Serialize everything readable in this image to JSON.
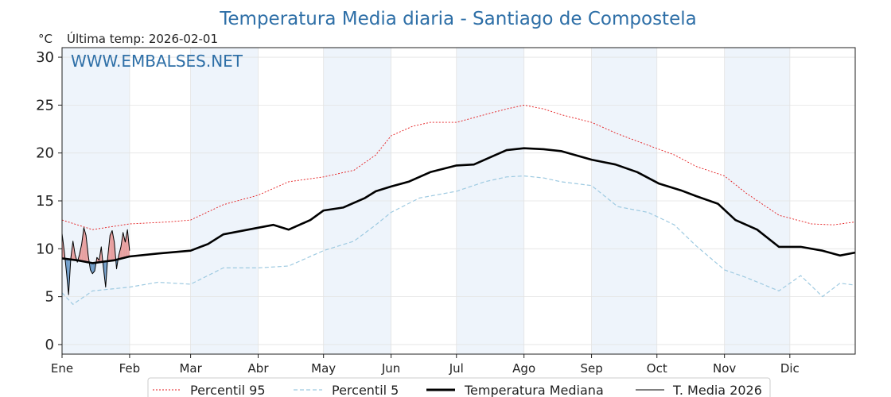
{
  "header": {
    "title": "Temperatura Media diaria - Santiago de Compostela",
    "unit": "°C",
    "last_temp": "Última temp: 2026-02-01",
    "watermark": "WWW.EMBALSES.NET"
  },
  "colors": {
    "p95": "#e41a1c",
    "p5": "#9ecae1",
    "median": "#000000",
    "current": "#000000",
    "fill_above": "#e8a0a0",
    "fill_below": "#6f9cc8",
    "band": "#eef4fb"
  },
  "legend": [
    {
      "key": "p95",
      "label": "Percentil 95"
    },
    {
      "key": "p5",
      "label": "Percentil 5"
    },
    {
      "key": "median",
      "label": "Temperatura Mediana"
    },
    {
      "key": "current",
      "label": "T. Media 2026"
    }
  ],
  "chart_data": {
    "type": "line",
    "title": "Temperatura Media diaria - Santiago de Compostela",
    "ylabel": "°C",
    "ylim": [
      -1,
      31
    ],
    "yticks": [
      0,
      5,
      10,
      15,
      20,
      25,
      30
    ],
    "xlim": [
      1,
      365
    ],
    "months": [
      {
        "label": "Ene",
        "day": 1
      },
      {
        "label": "Feb",
        "day": 32
      },
      {
        "label": "Mar",
        "day": 60
      },
      {
        "label": "Abr",
        "day": 91
      },
      {
        "label": "May",
        "day": 121
      },
      {
        "label": "Jun",
        "day": 152
      },
      {
        "label": "Jul",
        "day": 182
      },
      {
        "label": "Ago",
        "day": 213
      },
      {
        "label": "Sep",
        "day": 244
      },
      {
        "label": "Oct",
        "day": 274
      },
      {
        "label": "Nov",
        "day": 305
      },
      {
        "label": "Dic",
        "day": 335
      }
    ],
    "grid": true,
    "legend_position": "bottom",
    "series": [
      {
        "key": "p95",
        "name": "Percentil 95",
        "style": "dotted",
        "x": [
          1,
          15,
          32,
          50,
          60,
          75,
          91,
          105,
          121,
          135,
          145,
          152,
          162,
          170,
          182,
          195,
          205,
          213,
          222,
          230,
          244,
          256,
          270,
          282,
          292,
          305,
          315,
          330,
          345,
          355,
          365
        ],
        "y": [
          13.0,
          12.0,
          12.6,
          12.8,
          13.0,
          14.6,
          15.6,
          17.0,
          17.5,
          18.2,
          19.8,
          21.8,
          22.8,
          23.2,
          23.2,
          24.0,
          24.6,
          25.0,
          24.6,
          24.0,
          23.2,
          22.0,
          20.8,
          19.8,
          18.6,
          17.6,
          15.8,
          13.5,
          12.6,
          12.5,
          12.8
        ]
      },
      {
        "key": "p5",
        "name": "Percentil 5",
        "style": "dashed",
        "x": [
          1,
          6,
          15,
          32,
          45,
          60,
          75,
          91,
          105,
          121,
          135,
          145,
          152,
          165,
          182,
          195,
          205,
          213,
          222,
          230,
          244,
          256,
          270,
          282,
          292,
          305,
          315,
          330,
          340,
          350,
          358,
          365
        ],
        "y": [
          5.4,
          4.2,
          5.6,
          6.0,
          6.5,
          6.3,
          8.0,
          8.0,
          8.2,
          9.8,
          10.8,
          12.5,
          13.8,
          15.3,
          16.0,
          17.0,
          17.5,
          17.6,
          17.4,
          17.0,
          16.6,
          14.4,
          13.8,
          12.5,
          10.3,
          7.8,
          7.0,
          5.6,
          7.2,
          5.0,
          6.4,
          6.2
        ]
      },
      {
        "key": "median",
        "name": "Temperatura Mediana",
        "style": "solid-thick",
        "x": [
          1,
          8,
          15,
          25,
          32,
          45,
          60,
          68,
          75,
          91,
          98,
          105,
          115,
          121,
          130,
          140,
          145,
          152,
          160,
          170,
          182,
          190,
          200,
          205,
          213,
          222,
          230,
          244,
          255,
          265,
          275,
          285,
          292,
          302,
          310,
          320,
          330,
          340,
          350,
          358,
          365
        ],
        "y": [
          9.0,
          8.8,
          8.5,
          8.8,
          9.2,
          9.5,
          9.8,
          10.5,
          11.5,
          12.2,
          12.5,
          12.0,
          13.0,
          14.0,
          14.3,
          15.3,
          16.0,
          16.5,
          17.0,
          18.0,
          18.7,
          18.8,
          19.8,
          20.3,
          20.5,
          20.4,
          20.2,
          19.3,
          18.8,
          18.0,
          16.8,
          16.1,
          15.5,
          14.7,
          13.0,
          12.0,
          10.2,
          10.2,
          9.8,
          9.3,
          9.6
        ]
      },
      {
        "key": "current",
        "name": "T. Media 2026",
        "style": "solid-thin",
        "x": [
          1,
          2,
          3,
          4,
          5,
          6,
          7,
          8,
          9,
          10,
          11,
          12,
          13,
          14,
          15,
          16,
          17,
          18,
          19,
          20,
          21,
          22,
          23,
          24,
          25,
          26,
          27,
          28,
          29,
          30,
          31,
          32
        ],
        "y": [
          11.6,
          9.8,
          7.6,
          5.2,
          9.0,
          10.8,
          9.4,
          8.6,
          9.4,
          10.5,
          12.2,
          11.4,
          9.3,
          7.8,
          7.4,
          7.7,
          9.1,
          8.8,
          10.2,
          8.0,
          6.0,
          9.2,
          11.4,
          11.9,
          10.7,
          7.9,
          9.3,
          10.2,
          11.7,
          10.7,
          12.0,
          9.8
        ]
      }
    ]
  }
}
